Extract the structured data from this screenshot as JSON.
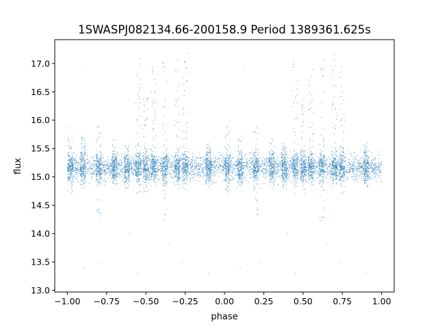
{
  "chart_data": {
    "type": "scatter",
    "title": "1SWASPJ082134.66-200158.9 Period 1389361.625s",
    "xlabel": "phase",
    "ylabel": "flux",
    "xlim": [
      -1.08,
      1.08
    ],
    "ylim": [
      12.97,
      17.42
    ],
    "xticks": [
      -1.0,
      -0.75,
      -0.5,
      -0.25,
      0.0,
      0.25,
      0.5,
      0.75,
      1.0
    ],
    "xtick_labels": [
      "−1.00",
      "−0.75",
      "−0.50",
      "−0.25",
      "0.00",
      "0.25",
      "0.50",
      "0.75",
      "1.00"
    ],
    "yticks": [
      13.0,
      13.5,
      14.0,
      14.5,
      15.0,
      15.5,
      16.0,
      16.5,
      17.0
    ],
    "ytick_labels": [
      "13.0",
      "13.5",
      "14.0",
      "14.5",
      "15.0",
      "15.5",
      "16.0",
      "16.5",
      "17.0"
    ],
    "grid": false,
    "point_color": "#1f77b4",
    "core_band": {
      "phase_range": [
        -1.0,
        1.0
      ],
      "flux_center": 15.17,
      "flux_spread": 0.16
    },
    "clusters": [
      {
        "phase": -0.98,
        "flux_range": [
          14.7,
          15.9
        ]
      },
      {
        "phase": -0.9,
        "flux_range": [
          14.8,
          15.7
        ]
      },
      {
        "phase": -0.8,
        "flux_range": [
          14.3,
          15.9
        ]
      },
      {
        "phase": -0.7,
        "flux_range": [
          14.8,
          15.7
        ]
      },
      {
        "phase": -0.62,
        "flux_range": [
          14.8,
          15.6
        ]
      },
      {
        "phase": -0.55,
        "flux_range": [
          14.6,
          17.1
        ]
      },
      {
        "phase": -0.5,
        "flux_range": [
          14.7,
          16.4
        ]
      },
      {
        "phase": -0.45,
        "flux_range": [
          14.8,
          17.0
        ]
      },
      {
        "phase": -0.38,
        "flux_range": [
          14.2,
          17.1
        ]
      },
      {
        "phase": -0.3,
        "flux_range": [
          14.8,
          17.2
        ]
      },
      {
        "phase": -0.25,
        "flux_range": [
          14.7,
          17.2
        ]
      },
      {
        "phase": -0.1,
        "flux_range": [
          14.8,
          15.6
        ]
      },
      {
        "phase": 0.02,
        "flux_range": [
          14.7,
          15.9
        ]
      },
      {
        "phase": 0.1,
        "flux_range": [
          14.8,
          15.7
        ]
      },
      {
        "phase": 0.2,
        "flux_range": [
          14.3,
          15.9
        ]
      },
      {
        "phase": 0.3,
        "flux_range": [
          14.8,
          15.7
        ]
      },
      {
        "phase": 0.38,
        "flux_range": [
          14.8,
          15.6
        ]
      },
      {
        "phase": 0.45,
        "flux_range": [
          14.6,
          17.1
        ]
      },
      {
        "phase": 0.5,
        "flux_range": [
          14.7,
          16.4
        ]
      },
      {
        "phase": 0.55,
        "flux_range": [
          14.8,
          17.0
        ]
      },
      {
        "phase": 0.62,
        "flux_range": [
          14.2,
          17.1
        ]
      },
      {
        "phase": 0.7,
        "flux_range": [
          14.8,
          17.2
        ]
      },
      {
        "phase": 0.75,
        "flux_range": [
          14.7,
          17.2
        ]
      },
      {
        "phase": 0.9,
        "flux_range": [
          14.8,
          15.6
        ]
      }
    ],
    "outliers": [
      [
        -0.9,
        13.4
      ],
      [
        -0.78,
        13.5
      ],
      [
        -0.55,
        13.3
      ],
      [
        -0.27,
        13.5
      ],
      [
        -0.1,
        13.3
      ],
      [
        0.1,
        13.4
      ],
      [
        0.22,
        13.5
      ],
      [
        0.45,
        13.3
      ],
      [
        0.73,
        13.5
      ],
      [
        0.9,
        13.3
      ],
      [
        -0.88,
        16.9
      ],
      [
        0.12,
        16.9
      ],
      [
        -0.6,
        14.0
      ],
      [
        0.4,
        14.0
      ],
      [
        -0.35,
        13.8
      ],
      [
        0.65,
        13.8
      ]
    ]
  }
}
